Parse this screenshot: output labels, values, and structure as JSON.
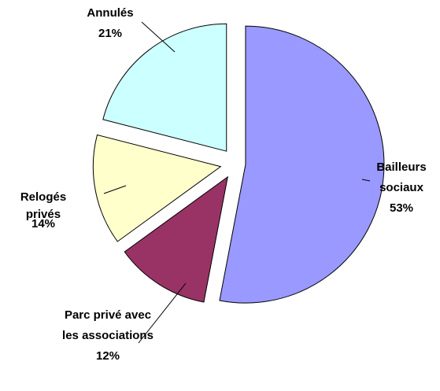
{
  "chart_data": {
    "type": "pie",
    "categories": [
      "Bailleurs sociaux",
      "Parc privé avec les associations",
      "Relogés privés",
      "Annulés"
    ],
    "values": [
      53,
      12,
      14,
      21
    ],
    "value_labels": [
      "53%",
      "12%",
      "14%",
      "21%"
    ],
    "colors": [
      "#9999ff",
      "#993366",
      "#ffffcc",
      "#ccffff"
    ]
  }
}
